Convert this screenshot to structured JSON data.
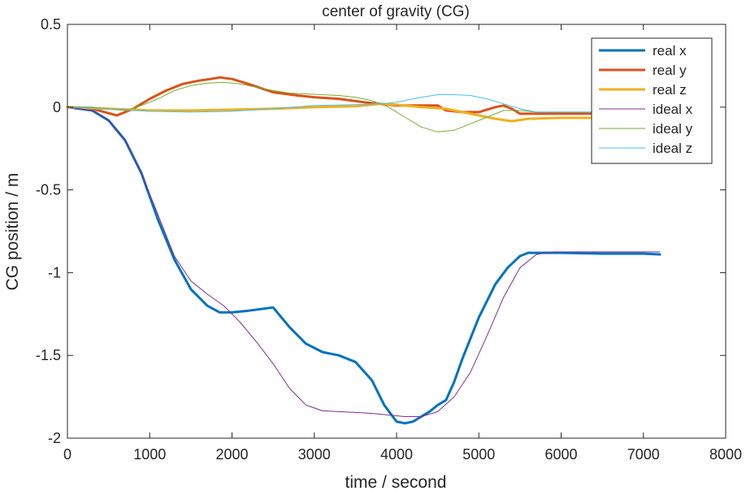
{
  "chart_data": {
    "type": "line",
    "title": "center of gravity (CG)",
    "xlabel": "time / second",
    "ylabel": "CG position / m",
    "xlim": [
      0,
      8000
    ],
    "ylim": [
      -2,
      0.5
    ],
    "xticks": [
      0,
      1000,
      2000,
      3000,
      4000,
      5000,
      6000,
      7000,
      8000
    ],
    "yticks": [
      0.5,
      0,
      -0.5,
      -1,
      -1.5,
      -2
    ],
    "xtick_labels": [
      "0",
      "1000",
      "2000",
      "3000",
      "4000",
      "5000",
      "6000",
      "7000",
      "8000"
    ],
    "ytick_labels": [
      "0.5",
      "0",
      "-0.5",
      "-1",
      "-1.5",
      "-2"
    ],
    "grid": false,
    "legend_position": "top-right",
    "series": [
      {
        "name": "real x",
        "color": "#0072BD",
        "width": 3,
        "x": [
          0,
          300,
          500,
          700,
          900,
          1100,
          1300,
          1500,
          1700,
          1850,
          2000,
          2200,
          2500,
          2700,
          2900,
          3100,
          3300,
          3500,
          3700,
          3850,
          4000,
          4100,
          4200,
          4300,
          4400,
          4500,
          4600,
          4700,
          4800,
          5000,
          5200,
          5350,
          5500,
          5600,
          5800,
          6000,
          6500,
          7000,
          7200
        ],
        "y": [
          0,
          -0.02,
          -0.08,
          -0.2,
          -0.4,
          -0.68,
          -0.92,
          -1.1,
          -1.2,
          -1.24,
          -1.24,
          -1.23,
          -1.21,
          -1.33,
          -1.43,
          -1.48,
          -1.5,
          -1.54,
          -1.65,
          -1.8,
          -1.9,
          -1.91,
          -1.9,
          -1.87,
          -1.84,
          -1.8,
          -1.77,
          -1.66,
          -1.52,
          -1.27,
          -1.07,
          -0.97,
          -0.9,
          -0.88,
          -0.88,
          -0.88,
          -0.885,
          -0.885,
          -0.89
        ]
      },
      {
        "name": "real y",
        "color": "#D95319",
        "width": 3,
        "x": [
          0,
          300,
          600,
          800,
          1000,
          1200,
          1400,
          1600,
          1800,
          1850,
          2000,
          2200,
          2500,
          2800,
          3000,
          3300,
          3600,
          4000,
          4300,
          4500,
          4600,
          4800,
          5000,
          5200,
          5300,
          5400,
          5500,
          5700,
          6000,
          6500,
          7000,
          7200
        ],
        "y": [
          0,
          -0.01,
          -0.05,
          -0.01,
          0.05,
          0.1,
          0.14,
          0.16,
          0.175,
          0.18,
          0.17,
          0.14,
          0.09,
          0.07,
          0.06,
          0.05,
          0.03,
          0.01,
          0.01,
          0.01,
          -0.02,
          -0.03,
          -0.03,
          0.0,
          0.01,
          -0.01,
          -0.04,
          -0.04,
          -0.04,
          -0.04,
          -0.04,
          -0.04
        ]
      },
      {
        "name": "real z",
        "color": "#EDB120",
        "width": 3,
        "x": [
          0,
          500,
          1000,
          1500,
          2000,
          2500,
          3000,
          3500,
          3800,
          4000,
          4300,
          4600,
          4800,
          5000,
          5200,
          5400,
          5600,
          6000,
          6500,
          7000,
          7200
        ],
        "y": [
          0,
          -0.01,
          -0.02,
          -0.02,
          -0.015,
          -0.01,
          0.0,
          0.005,
          0.02,
          0.015,
          0.0,
          -0.01,
          -0.03,
          -0.05,
          -0.07,
          -0.085,
          -0.07,
          -0.065,
          -0.065,
          -0.065,
          -0.065
        ]
      },
      {
        "name": "ideal x",
        "color": "#7E2F8E",
        "width": 1,
        "x": [
          0,
          300,
          500,
          700,
          900,
          1100,
          1300,
          1500,
          1700,
          1900,
          2100,
          2300,
          2500,
          2700,
          2900,
          3100,
          3300,
          3500,
          3700,
          3900,
          4100,
          4300,
          4500,
          4700,
          4900,
          5100,
          5300,
          5500,
          5700,
          5900,
          6100,
          6500,
          7000,
          7200
        ],
        "y": [
          0,
          -0.02,
          -0.08,
          -0.2,
          -0.4,
          -0.65,
          -0.9,
          -1.05,
          -1.13,
          -1.2,
          -1.3,
          -1.42,
          -1.55,
          -1.7,
          -1.8,
          -1.835,
          -1.84,
          -1.845,
          -1.85,
          -1.86,
          -1.87,
          -1.87,
          -1.84,
          -1.75,
          -1.6,
          -1.38,
          -1.15,
          -0.97,
          -0.89,
          -0.875,
          -0.875,
          -0.875,
          -0.875,
          -0.875
        ]
      },
      {
        "name": "ideal y",
        "color": "#77AC30",
        "width": 1,
        "x": [
          0,
          300,
          500,
          700,
          900,
          1100,
          1300,
          1500,
          1700,
          1900,
          2100,
          2300,
          2500,
          2700,
          2900,
          3100,
          3300,
          3500,
          3700,
          3900,
          4100,
          4300,
          4500,
          4700,
          4900,
          5100,
          5300,
          5500,
          5700,
          6000,
          6500,
          7000,
          7200
        ],
        "y": [
          0,
          0.0,
          -0.01,
          -0.02,
          0.01,
          0.05,
          0.1,
          0.13,
          0.145,
          0.15,
          0.14,
          0.12,
          0.1,
          0.085,
          0.08,
          0.075,
          0.07,
          0.06,
          0.04,
          0.0,
          -0.06,
          -0.12,
          -0.15,
          -0.14,
          -0.1,
          -0.06,
          -0.02,
          -0.02,
          -0.03,
          -0.03,
          -0.03,
          -0.03,
          -0.03
        ]
      },
      {
        "name": "ideal z",
        "color": "#4DBEEE",
        "width": 1,
        "x": [
          0,
          500,
          1000,
          1500,
          2000,
          2500,
          3000,
          3500,
          3800,
          4000,
          4300,
          4500,
          4700,
          4900,
          5100,
          5300,
          5500,
          5700,
          6000,
          6500,
          7000,
          7200
        ],
        "y": [
          0,
          -0.01,
          -0.025,
          -0.03,
          -0.025,
          -0.01,
          0.01,
          0.015,
          0.02,
          0.03,
          0.06,
          0.075,
          0.075,
          0.07,
          0.05,
          0.02,
          -0.01,
          -0.03,
          -0.03,
          -0.03,
          -0.03,
          -0.03
        ]
      }
    ]
  }
}
